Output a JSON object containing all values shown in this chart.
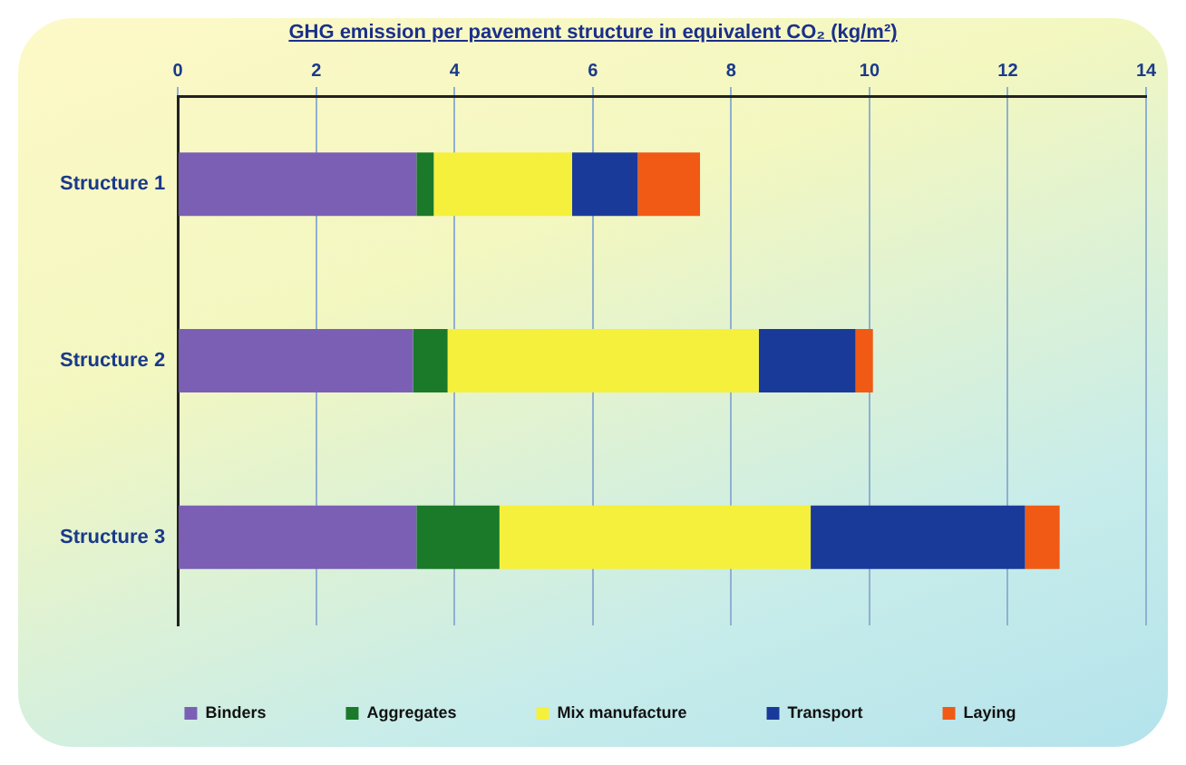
{
  "chart_data": {
    "type": "bar",
    "orientation": "horizontal",
    "stacked": true,
    "title": "GHG emission per pavement structure in equivalent CO₂ (kg/m²)",
    "categories": [
      "Structure 1",
      "Structure 2",
      "Structure 3"
    ],
    "series": [
      {
        "name": "Binders",
        "color": "#7b5fb5",
        "values": [
          3.45,
          3.4,
          3.45
        ]
      },
      {
        "name": "Aggregates",
        "color": "#1a7a2a",
        "values": [
          0.25,
          0.5,
          1.2
        ]
      },
      {
        "name": "Mix manufacture",
        "color": "#f5f03c",
        "values": [
          2.0,
          4.5,
          4.5
        ]
      },
      {
        "name": "Transport",
        "color": "#1a3a9a",
        "values": [
          0.95,
          1.4,
          3.1
        ]
      },
      {
        "name": "Laying",
        "color": "#f05a14",
        "values": [
          0.9,
          0.25,
          0.5
        ]
      }
    ],
    "xlim": [
      0,
      14
    ],
    "xticks": [
      0,
      2,
      4,
      6,
      8,
      10,
      12,
      14
    ],
    "grid": "x",
    "legend": "bottom"
  }
}
